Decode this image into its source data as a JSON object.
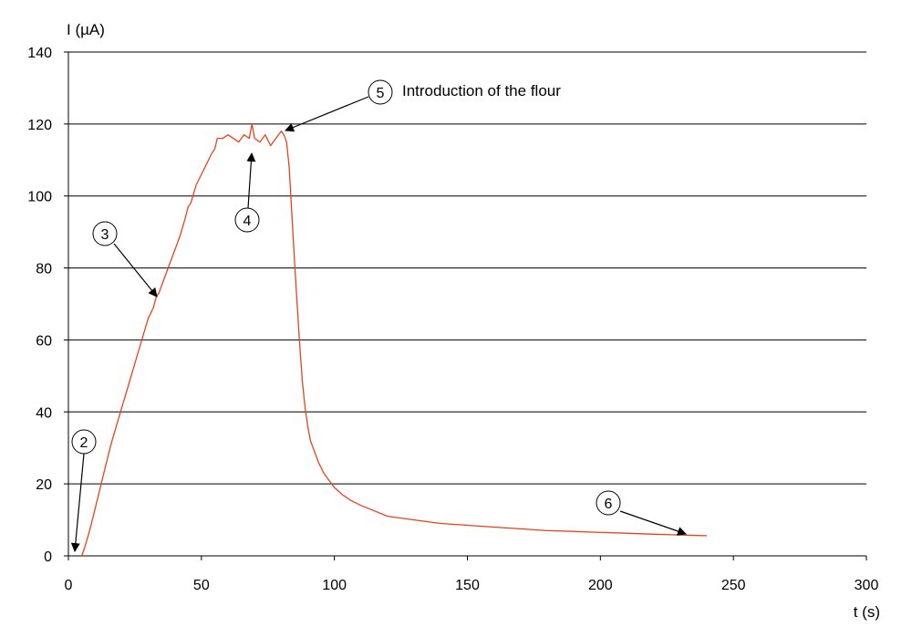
{
  "chart_data": {
    "type": "line",
    "title": "",
    "xlabel": "t (s)",
    "ylabel": "I (µA)",
    "xlim": [
      0,
      300
    ],
    "ylim": [
      0,
      140
    ],
    "xticks": [
      0,
      50,
      100,
      150,
      200,
      250,
      300
    ],
    "yticks": [
      0,
      20,
      40,
      60,
      80,
      100,
      120,
      140
    ],
    "grid": "horizontal",
    "line_color": "#e8431c",
    "series": [
      {
        "x": [
          5,
          6,
          8,
          10,
          12,
          14,
          16,
          18,
          20,
          22,
          24,
          26,
          28,
          30,
          32,
          33,
          34,
          36,
          38,
          40,
          42,
          44,
          45,
          46,
          48,
          50,
          52,
          54,
          55,
          56,
          58,
          60,
          62,
          64,
          66,
          68,
          69,
          70,
          72,
          74,
          76,
          78,
          80,
          81,
          82,
          83,
          84,
          85,
          86,
          87,
          88,
          89,
          90,
          91,
          92,
          94,
          96,
          98,
          100,
          103,
          106,
          110,
          115,
          120,
          130,
          140,
          150,
          160,
          170,
          180,
          190,
          200,
          210,
          220,
          230,
          240
        ],
        "y": [
          0,
          2,
          7,
          13,
          19,
          25,
          31,
          36,
          41,
          46,
          51,
          56,
          61,
          66,
          69,
          72,
          73,
          77,
          81,
          85,
          89,
          94,
          97,
          98,
          103,
          106,
          109,
          112,
          113,
          116,
          116,
          117,
          116,
          115,
          117,
          116,
          120,
          116,
          115,
          117,
          114,
          116,
          118,
          117,
          115,
          108,
          95,
          82,
          70,
          58,
          48,
          41,
          36,
          32,
          30,
          26,
          23,
          21,
          19,
          17,
          15.5,
          14,
          12.5,
          11,
          10,
          9,
          8.5,
          8,
          7.5,
          7,
          6.8,
          6.5,
          6.3,
          6,
          5.8,
          5.6
        ]
      }
    ],
    "annotations": [
      {
        "label": "2",
        "text": ""
      },
      {
        "label": "3",
        "text": ""
      },
      {
        "label": "4",
        "text": ""
      },
      {
        "label": "5",
        "text": "Introduction of the flour"
      },
      {
        "label": "6",
        "text": ""
      }
    ]
  }
}
